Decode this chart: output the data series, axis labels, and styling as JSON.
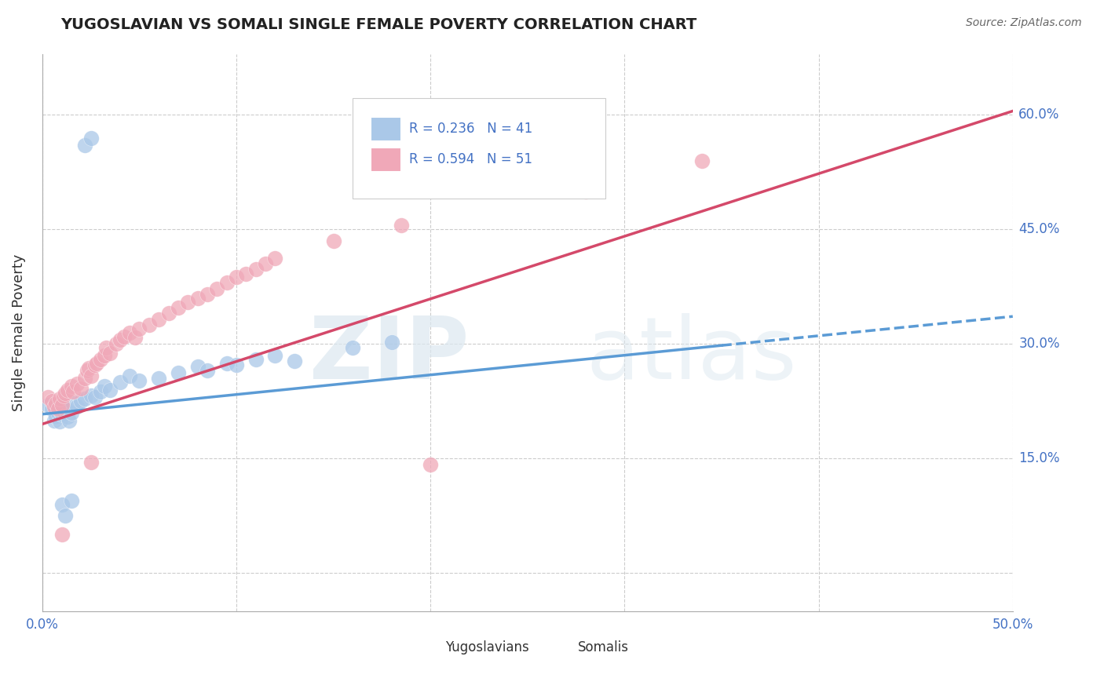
{
  "title": "YUGOSLAVIAN VS SOMALI SINGLE FEMALE POVERTY CORRELATION CHART",
  "source": "Source: ZipAtlas.com",
  "ylabel": "Single Female Poverty",
  "xlim": [
    0.0,
    0.5
  ],
  "ylim": [
    -0.05,
    0.68
  ],
  "yticks": [
    0.0,
    0.15,
    0.3,
    0.45,
    0.6
  ],
  "xticks": [
    0.0,
    0.1,
    0.2,
    0.3,
    0.4,
    0.5
  ],
  "xtick_labels": [
    "0.0%",
    "",
    "",
    "",
    "",
    "50.0%"
  ],
  "ytick_labels_right": [
    "",
    "15.0%",
    "30.0%",
    "45.0%",
    "60.0%"
  ],
  "yugoslavian_R": 0.236,
  "yugoslavian_N": 41,
  "somali_R": 0.594,
  "somali_N": 51,
  "yug_color": "#aac8e8",
  "somali_color": "#f0a8b8",
  "yug_line_color": "#5b9bd5",
  "somali_line_color": "#d4496a",
  "yug_scatter": [
    [
      0.003,
      0.22
    ],
    [
      0.005,
      0.215
    ],
    [
      0.006,
      0.2
    ],
    [
      0.007,
      0.205
    ],
    [
      0.008,
      0.21
    ],
    [
      0.009,
      0.198
    ],
    [
      0.01,
      0.208
    ],
    [
      0.01,
      0.218
    ],
    [
      0.011,
      0.212
    ],
    [
      0.012,
      0.215
    ],
    [
      0.013,
      0.205
    ],
    [
      0.014,
      0.2
    ],
    [
      0.015,
      0.21
    ],
    [
      0.016,
      0.222
    ],
    [
      0.018,
      0.218
    ],
    [
      0.02,
      0.225
    ],
    [
      0.022,
      0.228
    ],
    [
      0.025,
      0.232
    ],
    [
      0.027,
      0.23
    ],
    [
      0.03,
      0.238
    ],
    [
      0.032,
      0.245
    ],
    [
      0.035,
      0.24
    ],
    [
      0.04,
      0.25
    ],
    [
      0.045,
      0.258
    ],
    [
      0.05,
      0.252
    ],
    [
      0.06,
      0.255
    ],
    [
      0.07,
      0.262
    ],
    [
      0.08,
      0.27
    ],
    [
      0.085,
      0.265
    ],
    [
      0.095,
      0.275
    ],
    [
      0.1,
      0.272
    ],
    [
      0.11,
      0.28
    ],
    [
      0.12,
      0.285
    ],
    [
      0.13,
      0.278
    ],
    [
      0.16,
      0.295
    ],
    [
      0.18,
      0.302
    ],
    [
      0.022,
      0.56
    ],
    [
      0.025,
      0.57
    ],
    [
      0.01,
      0.09
    ],
    [
      0.012,
      0.075
    ],
    [
      0.015,
      0.095
    ]
  ],
  "somali_scatter": [
    [
      0.003,
      0.23
    ],
    [
      0.005,
      0.225
    ],
    [
      0.006,
      0.218
    ],
    [
      0.007,
      0.222
    ],
    [
      0.008,
      0.215
    ],
    [
      0.009,
      0.228
    ],
    [
      0.01,
      0.22
    ],
    [
      0.011,
      0.232
    ],
    [
      0.012,
      0.235
    ],
    [
      0.013,
      0.24
    ],
    [
      0.015,
      0.245
    ],
    [
      0.016,
      0.238
    ],
    [
      0.018,
      0.248
    ],
    [
      0.02,
      0.242
    ],
    [
      0.022,
      0.255
    ],
    [
      0.023,
      0.265
    ],
    [
      0.024,
      0.268
    ],
    [
      0.025,
      0.258
    ],
    [
      0.027,
      0.272
    ],
    [
      0.028,
      0.275
    ],
    [
      0.03,
      0.28
    ],
    [
      0.032,
      0.285
    ],
    [
      0.033,
      0.295
    ],
    [
      0.035,
      0.288
    ],
    [
      0.038,
      0.3
    ],
    [
      0.04,
      0.305
    ],
    [
      0.042,
      0.31
    ],
    [
      0.045,
      0.315
    ],
    [
      0.048,
      0.308
    ],
    [
      0.05,
      0.32
    ],
    [
      0.055,
      0.325
    ],
    [
      0.06,
      0.332
    ],
    [
      0.065,
      0.34
    ],
    [
      0.07,
      0.348
    ],
    [
      0.075,
      0.355
    ],
    [
      0.08,
      0.36
    ],
    [
      0.085,
      0.365
    ],
    [
      0.09,
      0.372
    ],
    [
      0.095,
      0.38
    ],
    [
      0.1,
      0.388
    ],
    [
      0.105,
      0.392
    ],
    [
      0.11,
      0.398
    ],
    [
      0.115,
      0.405
    ],
    [
      0.12,
      0.412
    ],
    [
      0.15,
      0.435
    ],
    [
      0.185,
      0.455
    ],
    [
      0.28,
      0.5
    ],
    [
      0.34,
      0.54
    ],
    [
      0.025,
      0.145
    ],
    [
      0.2,
      0.142
    ],
    [
      0.01,
      0.05
    ]
  ],
  "yug_line": {
    "x0": 0.0,
    "y0": 0.208,
    "x1": 0.35,
    "y1": 0.298,
    "x_dash_end": 0.5,
    "y_dash_end": 0.336
  },
  "somali_line": {
    "x0": 0.0,
    "y0": 0.195,
    "x1": 0.5,
    "y1": 0.605
  },
  "watermark_zip": "ZIP",
  "watermark_atlas": "atlas",
  "background_color": "#ffffff",
  "grid_color": "#cccccc"
}
